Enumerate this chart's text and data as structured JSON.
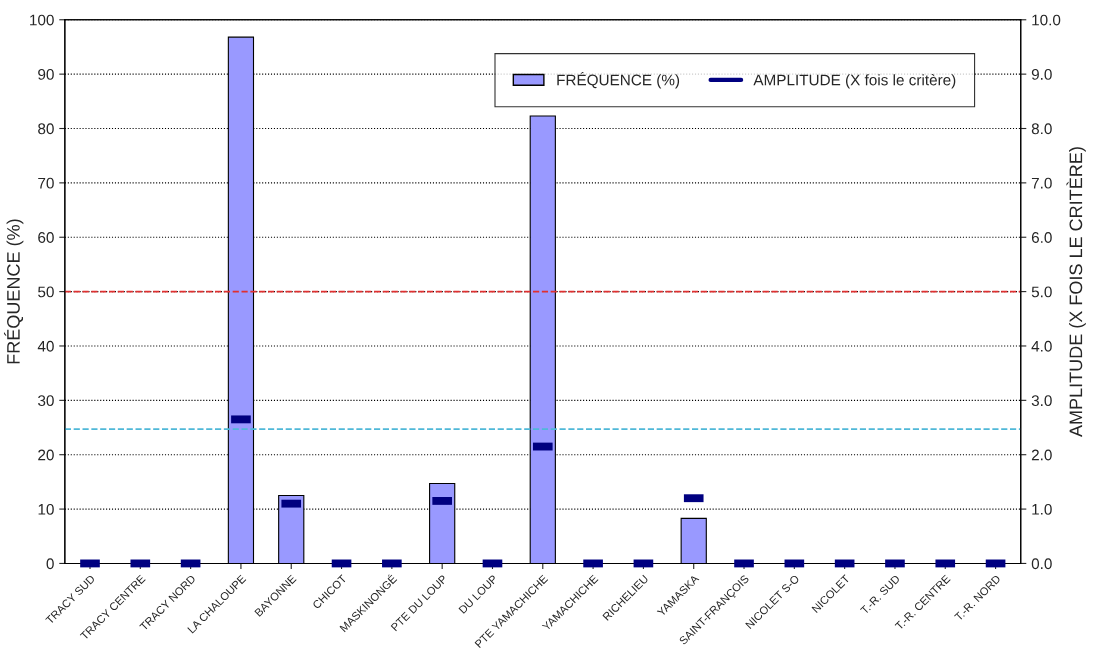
{
  "chart_data": {
    "type": "bar",
    "ylabel": "FRÉQUENCE (%)",
    "y2label": "AMPLITUDE (X FOIS LE CRITÈRE)",
    "categories": [
      "TRACY SUD",
      "TRACY CENTRE",
      "TRACY NORD",
      "LA CHALOUPE",
      "BAYONNE",
      "CHICOT",
      "MASKINONGÉ",
      "PTE DU LOUP",
      "DU LOUP",
      "PTE YAMACHICHE",
      "YAMACHICHE",
      "RICHELIEU",
      "YAMASKA",
      "SAINT-FRANÇOIS",
      "NICOLET S-O",
      "NICOLET",
      "T.-R. SUD",
      "T.-R. CENTRE",
      "T.-R. NORD"
    ],
    "series": [
      {
        "name": "FRÉQUENCE (%)",
        "color": "#9999ff",
        "values": [
          0,
          0,
          0,
          96.8,
          12.5,
          0,
          0,
          14.7,
          0,
          82.3,
          0,
          0,
          8.3,
          0,
          0,
          0,
          0,
          0,
          0
        ]
      },
      {
        "name": "AMPLITUDE (X fois le critère)",
        "type": "scatter",
        "axis": "y2",
        "color": "#000080",
        "values": [
          0,
          0,
          0,
          2.65,
          1.1,
          0,
          0,
          1.15,
          0,
          2.15,
          0,
          0,
          1.2,
          0,
          0,
          0,
          0,
          0,
          0
        ]
      }
    ],
    "ylim": [
      0,
      100
    ],
    "yticks": [
      0,
      10,
      20,
      30,
      40,
      50,
      60,
      70,
      80,
      90,
      100
    ],
    "y2lim": [
      0,
      10
    ],
    "y2ticks": [
      {
        "value": 0,
        "label": "0.0"
      },
      {
        "value": 1,
        "label": "1.0"
      },
      {
        "value": 2,
        "label": "2.0"
      },
      {
        "value": 3,
        "label": "3.0"
      },
      {
        "value": 4,
        "label": "4.0"
      },
      {
        "value": 5,
        "label": "5.0"
      },
      {
        "value": 6,
        "label": "6.0"
      },
      {
        "value": 7,
        "label": "7.0"
      },
      {
        "value": 8,
        "label": "8.0"
      },
      {
        "value": 9,
        "label": "9.0"
      },
      {
        "value": 10,
        "label": "10.0"
      }
    ],
    "ref_lines": [
      {
        "axis": "y",
        "value": 50,
        "color": "#e03030",
        "line_style": "dashed"
      },
      {
        "axis": "y",
        "value": 24.7,
        "color": "#4fb8d8",
        "line_style": "dashed"
      }
    ],
    "grid": "y",
    "legend": "top right"
  }
}
